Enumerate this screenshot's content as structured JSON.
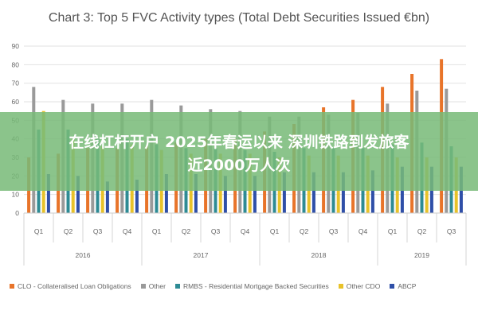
{
  "chart_data": {
    "type": "bar",
    "title": "Chart 3: Top 5 FVC Activity types (Total Debt Securities Issued €bn)",
    "quarters": [
      "Q1",
      "Q2",
      "Q3",
      "Q4",
      "Q1",
      "Q2",
      "Q3",
      "Q4",
      "Q1",
      "Q2",
      "Q3",
      "Q4",
      "Q1",
      "Q2",
      "Q3"
    ],
    "years": [
      {
        "label": "2016",
        "span": 4
      },
      {
        "label": "2017",
        "span": 4
      },
      {
        "label": "2018",
        "span": 4
      },
      {
        "label": "2019",
        "span": 3
      }
    ],
    "ylim": [
      0,
      90
    ],
    "yticks": [
      0,
      10,
      20,
      30,
      40,
      50,
      60,
      70,
      80,
      90
    ],
    "grid": true,
    "legend_position": "bottom",
    "series": [
      {
        "name": "CLO - Collateralised Loan Obligations",
        "color": "#e8742a",
        "values": [
          30,
          32,
          35,
          35,
          36,
          38,
          40,
          40,
          44,
          48,
          57,
          61,
          68,
          75,
          83
        ]
      },
      {
        "name": "Other",
        "color": "#9a9a9a",
        "values": [
          68,
          61,
          59,
          59,
          61,
          58,
          56,
          55,
          52,
          52,
          53,
          54,
          59,
          66,
          67
        ]
      },
      {
        "name": "RMBS - Residential Mortgage Backed Securities",
        "color": "#2e8b94",
        "values": [
          45,
          45,
          40,
          40,
          37,
          35,
          35,
          34,
          33,
          35,
          35,
          35,
          37,
          38,
          36
        ]
      },
      {
        "name": "Other CDO",
        "color": "#e8c22a",
        "values": [
          55,
          40,
          36,
          37,
          34,
          32,
          32,
          32,
          30,
          31,
          31,
          31,
          30,
          30,
          30
        ]
      },
      {
        "name": "ABCP",
        "color": "#2f4fa8",
        "values": [
          21,
          20,
          17,
          18,
          21,
          21,
          20,
          20,
          22,
          22,
          22,
          23,
          25,
          25,
          25
        ]
      }
    ]
  },
  "overlay": {
    "line1": "在线杠杆开户 2025年春运以来 深圳铁路到发旅客",
    "line2": "近2000万人次"
  }
}
